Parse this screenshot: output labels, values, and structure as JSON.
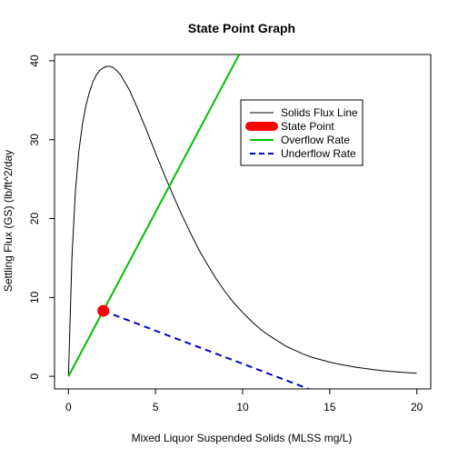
{
  "chart_data": {
    "type": "line",
    "title": "State Point Graph",
    "xlabel": "Mixed Liquor Suspended Solids (MLSS mg/L)",
    "ylabel": "Settling Flux (GS) (lb/ft^2/day",
    "xlim": [
      -0.8,
      20.8
    ],
    "ylim": [
      -1.6,
      40.8
    ],
    "xticks": [
      0,
      5,
      10,
      15,
      20
    ],
    "yticks": [
      0,
      10,
      20,
      30,
      40
    ],
    "legend_position": "top-right",
    "series": [
      {
        "name": "Solids Flux Line",
        "color": "#000000",
        "style": "solid",
        "x": [
          0,
          0.2,
          0.4,
          0.6,
          0.8,
          1.0,
          1.2,
          1.4,
          1.6,
          1.8,
          2.0,
          2.2,
          2.4,
          2.6,
          2.8,
          3.0,
          3.5,
          4.0,
          4.5,
          5.0,
          5.5,
          6.0,
          6.5,
          7.0,
          7.5,
          8.0,
          8.5,
          9.0,
          9.5,
          10.0,
          10.5,
          11.0,
          11.5,
          12.0,
          12.5,
          13.0,
          13.5,
          14.0,
          14.5,
          15.0,
          15.5,
          16.0,
          16.5,
          17.0,
          17.5,
          18.0,
          18.5,
          19.0,
          19.5,
          20.0
        ],
        "y": [
          0,
          15.1,
          23.5,
          28.6,
          31.9,
          34.3,
          36.0,
          37.3,
          38.2,
          38.8,
          39.1,
          39.3,
          39.3,
          39.1,
          38.7,
          38.2,
          36.3,
          33.8,
          31.1,
          28.3,
          25.6,
          23.0,
          20.5,
          18.2,
          16.0,
          14.1,
          12.3,
          10.7,
          9.3,
          8.1,
          7.0,
          6.0,
          5.2,
          4.5,
          3.8,
          3.3,
          2.8,
          2.4,
          2.1,
          1.8,
          1.55,
          1.35,
          1.15,
          1.0,
          0.85,
          0.72,
          0.62,
          0.53,
          0.46,
          0.39
        ]
      },
      {
        "name": "Overflow Rate",
        "color": "#00c000",
        "style": "solid",
        "x": [
          0,
          9.8
        ],
        "y": [
          0,
          40.8
        ]
      },
      {
        "name": "Underflow Rate",
        "color": "#0000cc",
        "style": "dashed",
        "x": [
          2,
          13.8
        ],
        "y": [
          8.3,
          -1.6
        ]
      }
    ],
    "points": [
      {
        "name": "State Point",
        "color": "#ff0000",
        "x": 2.0,
        "y": 8.3
      }
    ],
    "legend": [
      {
        "label": "Solids Flux Line",
        "kind": "line",
        "color": "#000000",
        "style": "solid"
      },
      {
        "label": "State Point",
        "kind": "thick",
        "color": "#ff0000",
        "style": "solid"
      },
      {
        "label": "Overflow Rate",
        "kind": "line",
        "color": "#00c000",
        "style": "solid"
      },
      {
        "label": "Underflow Rate",
        "kind": "line",
        "color": "#0000cc",
        "style": "dashed"
      }
    ]
  }
}
